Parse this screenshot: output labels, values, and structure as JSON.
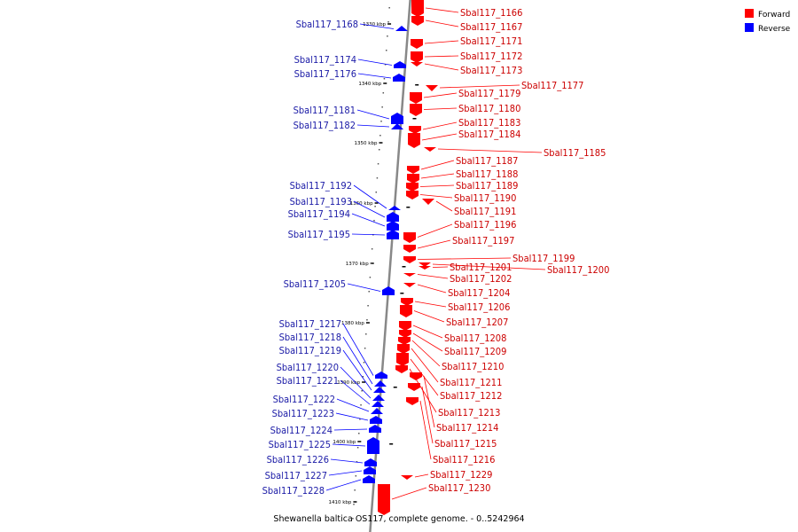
{
  "caption": "Shewanella baltica OS117, complete genome. - 0..5242964",
  "colors": {
    "forward": "#ff0000",
    "reverse": "#0000ff",
    "backbone": "#888888"
  },
  "legend": [
    {
      "label": "Forward",
      "color": "#ff0000"
    },
    {
      "label": "Reverse",
      "color": "#0000ff"
    }
  ],
  "ticks": [
    "1330 kbp",
    "1340 kbp",
    "1350 kbp",
    "1360 kbp",
    "1370 kbp",
    "1380 kbp",
    "1390 kbp",
    "1400 kbp",
    "1410 kbp"
  ],
  "forward_genes": [
    "Sbal117_1166",
    "Sbal117_1167",
    "Sbal117_1171",
    "Sbal117_1172",
    "Sbal117_1173",
    "Sbal117_1177",
    "Sbal117_1179",
    "Sbal117_1180",
    "Sbal117_1183",
    "Sbal117_1184",
    "Sbal117_1185",
    "Sbal117_1187",
    "Sbal117_1188",
    "Sbal117_1189",
    "Sbal117_1190",
    "Sbal117_1191",
    "Sbal117_1196",
    "Sbal117_1197",
    "Sbal117_1199",
    "Sbal117_1200",
    "Sbal117_1201",
    "Sbal117_1202",
    "Sbal117_1204",
    "Sbal117_1206",
    "Sbal117_1207",
    "Sbal117_1208",
    "Sbal117_1209",
    "Sbal117_1210",
    "Sbal117_1211",
    "Sbal117_1212",
    "Sbal117_1213",
    "Sbal117_1214",
    "Sbal117_1215",
    "Sbal117_1216",
    "Sbal117_1229",
    "Sbal117_1230"
  ],
  "reverse_genes": [
    "Sbal117_1168",
    "Sbal117_1174",
    "Sbal117_1176",
    "Sbal117_1181",
    "Sbal117_1182",
    "Sbal117_1192",
    "Sbal117_1193",
    "Sbal117_1194",
    "Sbal117_1195",
    "Sbal117_1205",
    "Sbal117_1217",
    "Sbal117_1218",
    "Sbal117_1219",
    "Sbal117_1220",
    "Sbal117_1221",
    "Sbal117_1222",
    "Sbal117_1223",
    "Sbal117_1224",
    "Sbal117_1225",
    "Sbal117_1226",
    "Sbal117_1227",
    "Sbal117_1228"
  ]
}
